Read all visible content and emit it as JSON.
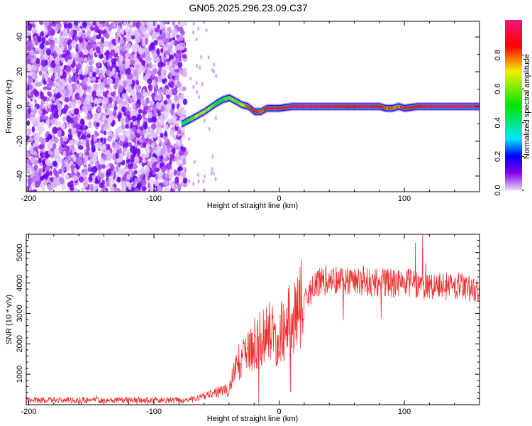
{
  "title": "GN05.2025.296.23.09.C37",
  "chart_data": [
    {
      "type": "heatmap",
      "title": "GN05.2025.296.23.09.C37",
      "xlabel": "Height of straight line (km)",
      "ylabel": "Frequency (Hz)",
      "xlim": [
        -202,
        160
      ],
      "ylim": [
        -49,
        49
      ],
      "xticks": [
        -200,
        -100,
        0,
        100
      ],
      "yticks": [
        -40,
        -20,
        0,
        20,
        40
      ],
      "noise_region_x": [
        -202,
        -75
      ],
      "ridge": {
        "x": [
          -78,
          -70,
          -60,
          -50,
          -45,
          -40,
          -35,
          -30,
          -25,
          -20,
          -15,
          -10,
          -5,
          0,
          10,
          20,
          40,
          60,
          70,
          80,
          85,
          90,
          95,
          100,
          110,
          120,
          160
        ],
        "freq": [
          -10,
          -7,
          -3,
          2,
          4,
          5,
          3,
          1,
          0,
          -3,
          -3,
          -1,
          -1,
          -1,
          0,
          0,
          0,
          0,
          0,
          0,
          -1,
          -1,
          0,
          -1,
          0,
          0,
          0
        ],
        "amp": [
          0.4,
          0.6,
          0.7,
          0.5,
          0.5,
          0.6,
          0.6,
          0.7,
          0.8,
          0.9,
          0.8,
          0.9,
          0.9,
          0.9,
          0.95,
          1,
          0.95,
          0.9,
          1,
          0.9,
          0.8,
          0.8,
          0.8,
          0.9,
          0.9,
          1,
          1
        ]
      },
      "colorbar": {
        "label": "Normalized spectral amplitude",
        "ticks": [
          "0.0",
          "0.2",
          "0.4",
          "0.6",
          "0.8"
        ],
        "range": [
          0,
          1
        ]
      }
    },
    {
      "type": "line",
      "xlabel": "Height of straight line (km)",
      "ylabel": "SNR (10 * v/v)",
      "xlim": [
        -202,
        160
      ],
      "ylim": [
        0,
        5600
      ],
      "xticks": [
        -200,
        -100,
        0,
        100
      ],
      "yticks": [
        1000,
        2000,
        3000,
        4000,
        5000
      ],
      "color": "#f03030",
      "envelope": {
        "x": [
          -202,
          -70,
          -60,
          -50,
          -40,
          -35,
          -30,
          -20,
          -10,
          0,
          10,
          20,
          30,
          40,
          60,
          80,
          100,
          120,
          140,
          160
        ],
        "snr": [
          150,
          150,
          300,
          400,
          500,
          1200,
          1500,
          2000,
          2400,
          2200,
          2900,
          3400,
          4000,
          4100,
          4100,
          4000,
          4000,
          3900,
          3900,
          3800
        ]
      }
    }
  ]
}
